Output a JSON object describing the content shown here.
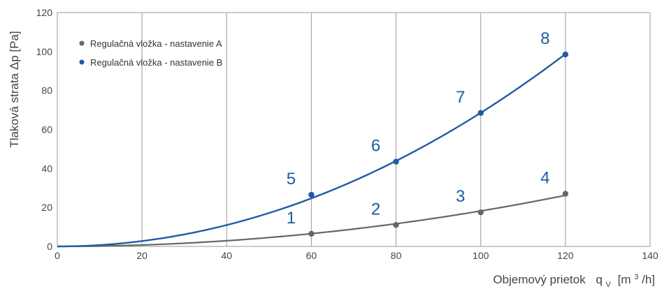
{
  "chart_data": {
    "type": "line",
    "title": "",
    "xlabel": "Objemový prietok",
    "xlabel_symbol": "q",
    "xlabel_subscript": "V",
    "xlabel_unit_open": "[m",
    "xlabel_unit_sup": "3",
    "xlabel_unit_close": "/h]",
    "ylabel": "Tlaková strata Δp [Pa]",
    "xlim": [
      0,
      140
    ],
    "ylim": [
      0,
      120
    ],
    "x_ticks": [
      "0",
      "20",
      "40",
      "60",
      "80",
      "100",
      "120",
      "140"
    ],
    "y_ticks": [
      "0",
      "20",
      "40",
      "60",
      "80",
      "100",
      "120"
    ],
    "grid": "vertical only",
    "legend_position": "top-left",
    "label_color": "#1f5aa6",
    "series": [
      {
        "name": "Regulačná vložka - nastavenie A",
        "color": "#666666",
        "x": [
          60,
          80,
          100,
          120
        ],
        "values": [
          6.5,
          11,
          17.5,
          27
        ],
        "point_labels": [
          "1",
          "2",
          "3",
          "4"
        ]
      },
      {
        "name": "Regulačná vložka - nastavenie B",
        "color": "#1f5aa6",
        "x": [
          60,
          80,
          100,
          120
        ],
        "values": [
          26.5,
          43.5,
          68.5,
          98.5
        ],
        "point_labels": [
          "5",
          "6",
          "7",
          "8"
        ]
      }
    ]
  }
}
